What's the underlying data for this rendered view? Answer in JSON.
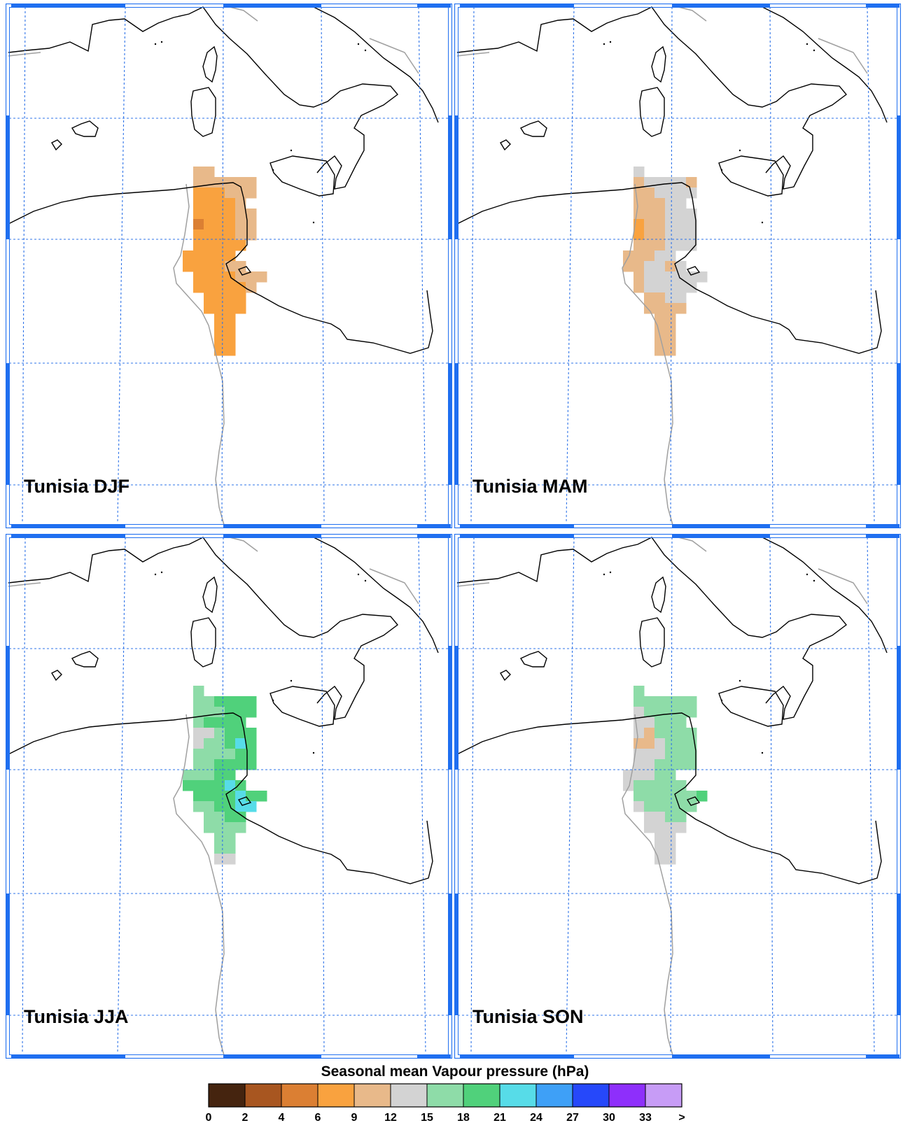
{
  "panels": [
    {
      "id": "djf",
      "label": "Tunisia DJF"
    },
    {
      "id": "mam",
      "label": "Tunisia MAM"
    },
    {
      "id": "jja",
      "label": "Tunisia JJA"
    },
    {
      "id": "son",
      "label": "Tunisia SON"
    }
  ],
  "legend": {
    "title": "Seasonal mean Vapour pressure (hPa)",
    "ticks": [
      "0",
      "2",
      "4",
      "6",
      "9",
      "12",
      "15",
      "18",
      "21",
      "24",
      "27",
      "30",
      "33",
      ">"
    ],
    "colors": [
      "#45240f",
      "#a85620",
      "#db7f33",
      "#f9a23f",
      "#e8b98a",
      "#d3d3d3",
      "#8edca8",
      "#50d17b",
      "#57dce8",
      "#3ea0f7",
      "#2648fa",
      "#8e2ffb",
      "#c79cf6"
    ]
  },
  "colors": {
    "frame_blue": "#1f6ff0",
    "grid_blue": "#2e73e8",
    "coast": "#000000",
    "border_gray": "#a0a0a0"
  }
}
